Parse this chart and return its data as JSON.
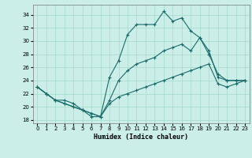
{
  "xlabel": "Humidex (Indice chaleur)",
  "bg_color": "#cceee8",
  "grid_color": "#aaddcc",
  "line_color": "#1a6b6b",
  "ylim": [
    17.5,
    35.5
  ],
  "xlim": [
    -0.5,
    23.5
  ],
  "yticks": [
    18,
    20,
    22,
    24,
    26,
    28,
    30,
    32,
    34
  ],
  "xticks": [
    0,
    1,
    2,
    3,
    4,
    5,
    6,
    7,
    8,
    9,
    10,
    11,
    12,
    13,
    14,
    15,
    16,
    17,
    18,
    19,
    20,
    21,
    22,
    23
  ],
  "line1_x": [
    0,
    1,
    2,
    3,
    4,
    5,
    6,
    7,
    8,
    9,
    10,
    11,
    12,
    13,
    14,
    15,
    16,
    17,
    18,
    19,
    20,
    21,
    22,
    23
  ],
  "line1_y": [
    23.0,
    22.0,
    21.0,
    21.0,
    20.5,
    19.5,
    18.5,
    18.5,
    24.5,
    27.0,
    31.0,
    32.5,
    32.5,
    32.5,
    34.5,
    33.0,
    33.5,
    31.5,
    30.5,
    28.0,
    25.0,
    24.0,
    24.0,
    24.0
  ],
  "line2_x": [
    0,
    1,
    2,
    3,
    4,
    5,
    6,
    7,
    8,
    9,
    10,
    11,
    12,
    13,
    14,
    15,
    16,
    17,
    18,
    19,
    20,
    21,
    22,
    23
  ],
  "line2_y": [
    23.0,
    22.0,
    21.0,
    20.5,
    20.0,
    19.5,
    19.0,
    18.5,
    21.0,
    24.0,
    25.5,
    26.5,
    27.0,
    27.5,
    28.5,
    29.0,
    29.5,
    28.5,
    30.5,
    28.5,
    24.5,
    24.0,
    24.0,
    24.0
  ],
  "line3_x": [
    0,
    1,
    2,
    3,
    4,
    5,
    6,
    7,
    8,
    9,
    10,
    11,
    12,
    13,
    14,
    15,
    16,
    17,
    18,
    19,
    20,
    21,
    22,
    23
  ],
  "line3_y": [
    23.0,
    22.0,
    21.0,
    20.5,
    20.0,
    19.5,
    19.0,
    18.5,
    20.5,
    21.5,
    22.0,
    22.5,
    23.0,
    23.5,
    24.0,
    24.5,
    25.0,
    25.5,
    26.0,
    26.5,
    23.5,
    23.0,
    23.5,
    24.0
  ]
}
